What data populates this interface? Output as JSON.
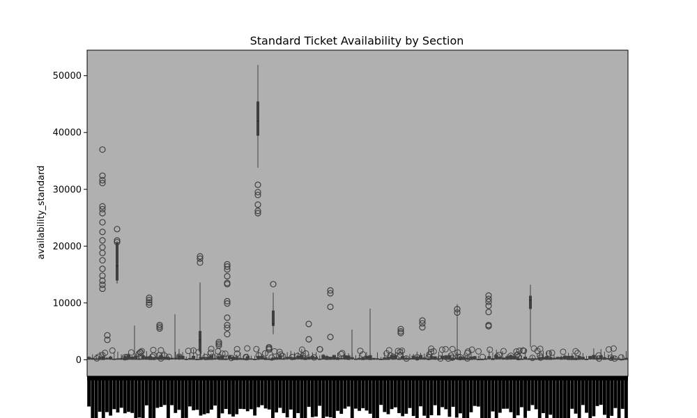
{
  "chart_data": {
    "type": "box",
    "title": "Standard Ticket Availability by Section",
    "xlabel": "",
    "ylabel": "availability_standard",
    "ylim": [
      -2900,
      54500
    ],
    "yticks": [
      0,
      10000,
      20000,
      30000,
      40000,
      50000
    ],
    "grid": false,
    "x_tick_labels_legible": false,
    "colors": {
      "plot_bg": "#b0b0b0",
      "box_edge": "#3f3f3f",
      "outline": "#000000"
    },
    "highlighted_boxes": [
      {
        "q1": 39500,
        "median": 42000,
        "q3": 45400,
        "whisker_low": 33800,
        "whisker_high": 51900
      },
      {
        "q1": 14000,
        "median": 16500,
        "q3": 20600,
        "whisker_low": 13400,
        "whisker_high": 20900
      },
      {
        "q1": 9000,
        "median": 10500,
        "q3": 11200,
        "whisker_low": 2200,
        "whisker_high": 13200
      },
      {
        "q1": 6000,
        "median": 6400,
        "q3": 8600,
        "whisker_low": 4500,
        "whisker_high": 11800
      },
      {
        "q1": 1500,
        "median": 3500,
        "q3": 5000,
        "whisker_low": 0,
        "whisker_high": 13600
      }
    ],
    "notable_outliers": [
      37000,
      32400,
      31600,
      31100,
      27000,
      26500,
      25800,
      24200,
      22500,
      21000,
      19800,
      18800,
      17500,
      16000,
      14800,
      13900,
      13200,
      12500,
      23000,
      21000,
      20700,
      30800,
      29500,
      29000,
      27300,
      26200,
      25800,
      18200,
      17800,
      17100,
      16800,
      16400,
      15900,
      14700,
      13500,
      13300,
      10300,
      9900,
      7400,
      6100,
      5600,
      4500,
      13300,
      10900,
      10500,
      10100,
      9700,
      9500,
      11300,
      10700,
      10200,
      8400,
      6100,
      5900,
      4000,
      12200,
      11700,
      9300,
      8900,
      8300,
      6900,
      6400,
      5700,
      5400,
      5000,
      4700,
      3600,
      6300,
      6100,
      5800,
      5500,
      4300,
      3500,
      3100,
      2800,
      2500,
      2200,
      2000,
      1800
    ]
  }
}
